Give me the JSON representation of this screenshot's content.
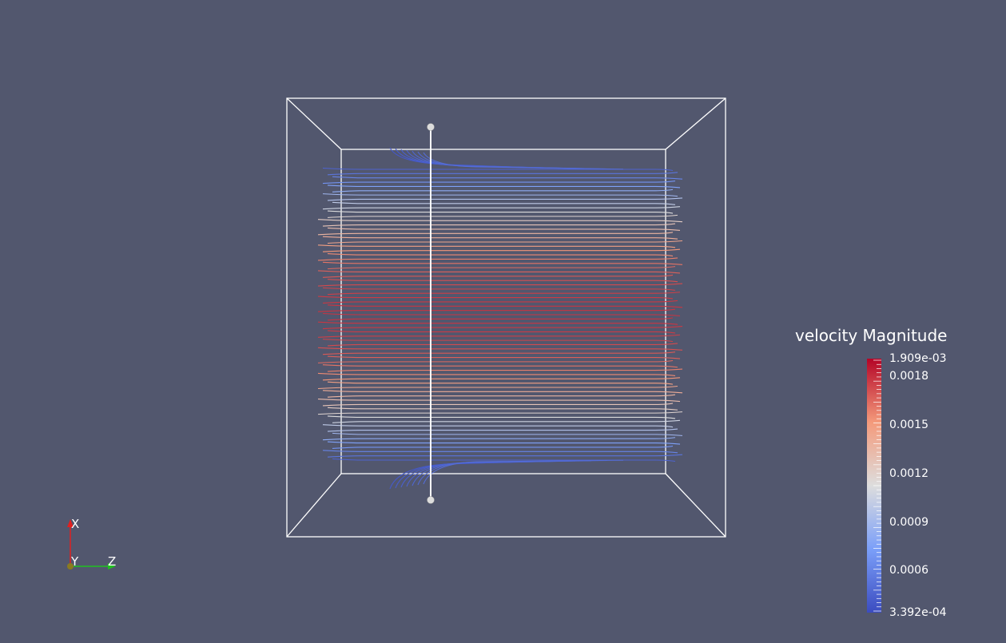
{
  "legend": {
    "title": "velocity Magnitude",
    "max_label": "1.909e-03",
    "min_label": "3.392e-04",
    "ticks": [
      "0.0018",
      "0.0015",
      "0.0012",
      "0.0009",
      "0.0006"
    ],
    "colors": {
      "low": "#3b4cc0",
      "mid": "#dddddd",
      "high": "#b40426"
    }
  },
  "axes_widget": {
    "x_label": "X",
    "y_label": "Y",
    "z_label": "Z"
  },
  "colors": {
    "background": "#52576e",
    "outline": "#ffffff"
  }
}
